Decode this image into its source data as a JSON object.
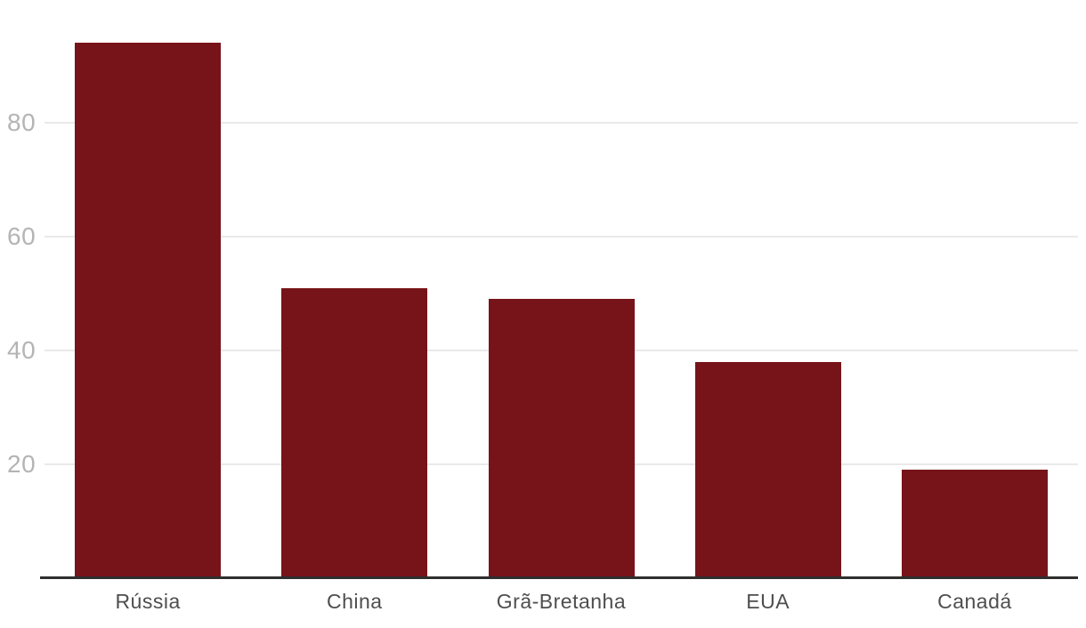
{
  "chart_data": {
    "type": "bar",
    "title": "",
    "xlabel": "",
    "ylabel": "",
    "categories": [
      "Rússia",
      "China",
      "Grã-Bretanha",
      "EUA",
      "Canadá"
    ],
    "values": [
      94,
      51,
      49,
      38,
      19
    ],
    "ylim": [
      0,
      100
    ],
    "yticks": [
      20,
      40,
      60,
      80
    ],
    "grid": true,
    "legend": false
  },
  "colors": {
    "bar": "#771419",
    "gridline": "#e9e9e9",
    "axis_line": "#2f2f2f",
    "ytick_label": "#b4b4b4",
    "xtick_label": "#4e4e4e",
    "background": "#ffffff"
  }
}
